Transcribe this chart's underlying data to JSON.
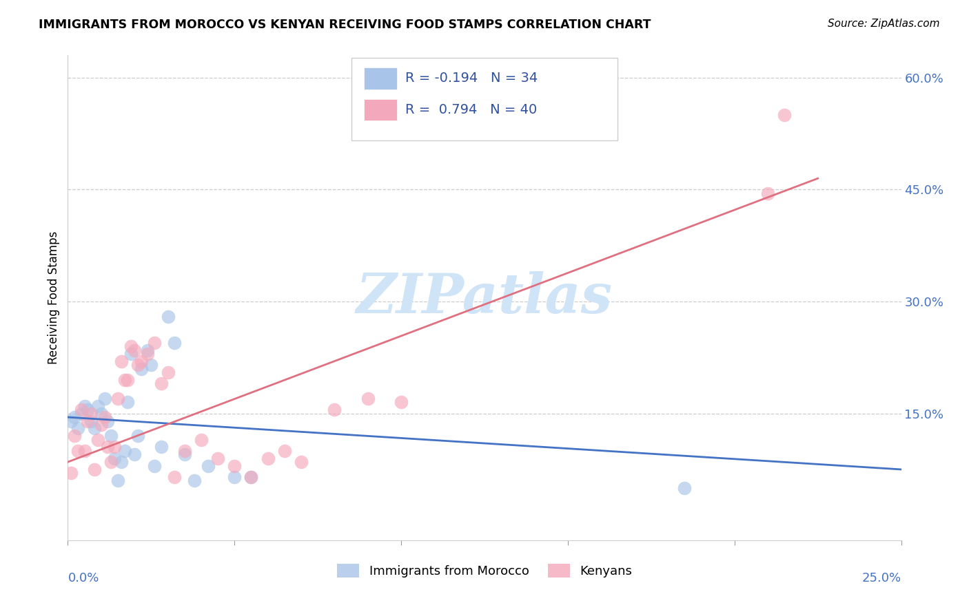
{
  "title": "IMMIGRANTS FROM MOROCCO VS KENYAN RECEIVING FOOD STAMPS CORRELATION CHART",
  "source": "Source: ZipAtlas.com",
  "ylabel": "Receiving Food Stamps",
  "yticks": [
    0.0,
    0.15,
    0.3,
    0.45,
    0.6
  ],
  "ytick_labels": [
    "",
    "15.0%",
    "30.0%",
    "45.0%",
    "60.0%"
  ],
  "xlim": [
    0.0,
    0.25
  ],
  "ylim": [
    -0.02,
    0.63
  ],
  "legend_line1": "R = -0.194   N = 34",
  "legend_line2": "R =  0.794   N = 40",
  "blue_color": "#a8c4e8",
  "pink_color": "#f4a8bb",
  "line_blue_color": "#4472c4",
  "line_pink_color": "#e07080",
  "axis_label_color": "#4472c4",
  "watermark_text": "ZIPatlas",
  "watermark_color": "#d0e4f7",
  "legend_label_color": "#3050a0",
  "blue_scatter_x": [
    0.001,
    0.002,
    0.003,
    0.004,
    0.005,
    0.006,
    0.007,
    0.008,
    0.009,
    0.01,
    0.011,
    0.012,
    0.013,
    0.014,
    0.015,
    0.016,
    0.017,
    0.018,
    0.019,
    0.02,
    0.021,
    0.022,
    0.024,
    0.025,
    0.026,
    0.028,
    0.03,
    0.032,
    0.035,
    0.038,
    0.042,
    0.05,
    0.055,
    0.185
  ],
  "blue_scatter_y": [
    0.14,
    0.145,
    0.13,
    0.15,
    0.16,
    0.155,
    0.14,
    0.13,
    0.16,
    0.15,
    0.17,
    0.14,
    0.12,
    0.09,
    0.06,
    0.085,
    0.1,
    0.165,
    0.23,
    0.095,
    0.12,
    0.21,
    0.235,
    0.215,
    0.08,
    0.105,
    0.28,
    0.245,
    0.095,
    0.06,
    0.08,
    0.065,
    0.065,
    0.05
  ],
  "pink_scatter_x": [
    0.001,
    0.002,
    0.003,
    0.004,
    0.005,
    0.006,
    0.007,
    0.008,
    0.009,
    0.01,
    0.011,
    0.012,
    0.013,
    0.014,
    0.015,
    0.016,
    0.017,
    0.018,
    0.019,
    0.02,
    0.021,
    0.022,
    0.024,
    0.026,
    0.028,
    0.03,
    0.032,
    0.035,
    0.04,
    0.045,
    0.05,
    0.055,
    0.06,
    0.065,
    0.07,
    0.08,
    0.09,
    0.1,
    0.21,
    0.215
  ],
  "pink_scatter_y": [
    0.07,
    0.12,
    0.1,
    0.155,
    0.1,
    0.14,
    0.15,
    0.075,
    0.115,
    0.135,
    0.145,
    0.105,
    0.085,
    0.105,
    0.17,
    0.22,
    0.195,
    0.195,
    0.24,
    0.235,
    0.215,
    0.22,
    0.23,
    0.245,
    0.19,
    0.205,
    0.065,
    0.1,
    0.115,
    0.09,
    0.08,
    0.065,
    0.09,
    0.1,
    0.085,
    0.155,
    0.17,
    0.165,
    0.445,
    0.55
  ],
  "blue_line_x": [
    0.0,
    0.25
  ],
  "blue_line_y": [
    0.145,
    0.075
  ],
  "pink_line_x": [
    0.0,
    0.225
  ],
  "pink_line_y": [
    0.085,
    0.465
  ],
  "legend_bottom_labels": [
    "Immigrants from Morocco",
    "Kenyans"
  ]
}
